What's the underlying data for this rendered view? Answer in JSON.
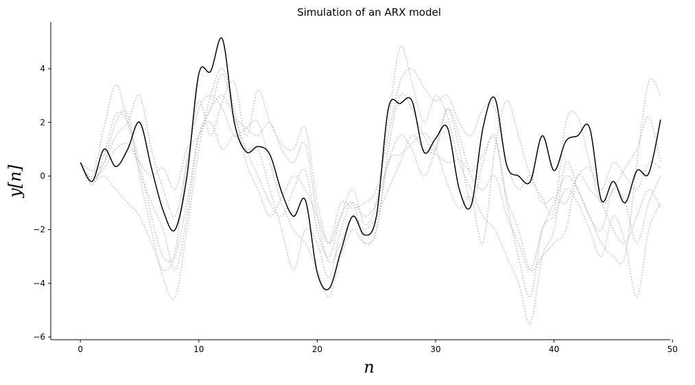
{
  "chart_data": {
    "type": "line",
    "title": "Simulation of an ARX model",
    "xlabel": "n",
    "ylabel": "y[n]",
    "x": [
      0,
      1,
      2,
      3,
      4,
      5,
      6,
      7,
      8,
      9,
      10,
      11,
      12,
      13,
      14,
      15,
      16,
      17,
      18,
      19,
      20,
      21,
      22,
      23,
      24,
      25,
      26,
      27,
      28,
      29,
      30,
      31,
      32,
      33,
      34,
      35,
      36,
      37,
      38,
      39,
      40,
      41,
      42,
      43,
      44,
      45,
      46,
      47,
      48,
      49
    ],
    "xlim": [
      -2.5,
      50.2
    ],
    "xticks": [
      0,
      10,
      20,
      30,
      40,
      50
    ],
    "ylim": [
      -6.1,
      5.74
    ],
    "yticks": [
      {
        "value": -6,
        "label": "−6"
      },
      {
        "value": -4,
        "label": "−4"
      },
      {
        "value": -2,
        "label": "−2"
      },
      0,
      2,
      4
    ],
    "grid": false,
    "series": [
      {
        "color": "#aaaaaa",
        "linestyle": "dotted",
        "values": [
          0.5,
          -0.3,
          0.8,
          2.3,
          2.0,
          0.5,
          -1.5,
          -3.0,
          -2.8,
          0.5,
          2.5,
          3.0,
          2.5,
          1.5,
          1.8,
          2.0,
          0.5,
          -1.0,
          -2.0,
          -2.5,
          -3.5,
          -4.5,
          -3.0,
          -2.0,
          -2.5,
          -2.0,
          1.0,
          3.0,
          2.5,
          1.5,
          1.0,
          2.5,
          1.0,
          -1.0,
          0.5,
          1.5,
          -1.0,
          -3.0,
          -4.5,
          -2.0,
          -1.5,
          -0.5,
          -1.0,
          -2.0,
          -3.0,
          -1.5,
          -2.5,
          -4.5,
          -2.0,
          -1.0
        ]
      },
      {
        "color": "#aaaaaa",
        "linestyle": "dotted",
        "values": [
          0.5,
          0.0,
          1.8,
          3.4,
          2.0,
          0.2,
          -1.0,
          -2.0,
          -3.5,
          -1.5,
          1.5,
          2.5,
          3.8,
          2.2,
          1.0,
          0.0,
          -1.0,
          -1.5,
          -0.5,
          0.2,
          -2.0,
          -3.0,
          -1.5,
          -0.5,
          -1.8,
          -1.0,
          2.0,
          4.8,
          3.5,
          2.0,
          3.0,
          2.2,
          0.5,
          -0.5,
          -1.5,
          -2.0,
          -3.0,
          -4.0,
          -5.5,
          -3.0,
          -2.0,
          0.5,
          -0.5,
          -1.5,
          -2.5,
          -3.0,
          -3.0,
          0.5,
          3.5,
          3.0
        ]
      },
      {
        "color": "#aaaaaa",
        "linestyle": "dotted",
        "values": [
          0.5,
          -0.2,
          0.0,
          -0.5,
          -1.0,
          -1.5,
          -2.5,
          -3.5,
          -3.0,
          -1.0,
          1.5,
          2.0,
          1.0,
          1.5,
          1.0,
          1.0,
          -0.5,
          -2.0,
          -3.5,
          -2.0,
          -2.5,
          -3.8,
          -2.0,
          -1.0,
          -1.5,
          -1.0,
          0.5,
          1.5,
          1.0,
          0.0,
          1.0,
          2.5,
          1.5,
          0.0,
          -0.5,
          0.0,
          -1.5,
          -2.5,
          -3.5,
          -2.0,
          -1.0,
          0.0,
          -0.5,
          -1.5,
          -2.0,
          -0.5,
          -1.0,
          -2.5,
          -1.0,
          0.0
        ]
      },
      {
        "color": "#aaaaaa",
        "linestyle": "dotted",
        "values": [
          0.5,
          0.2,
          0.5,
          1.5,
          2.0,
          3.0,
          1.0,
          -0.5,
          -1.5,
          0.5,
          2.8,
          1.5,
          2.8,
          3.5,
          1.5,
          3.2,
          2.0,
          1.2,
          1.0,
          1.8,
          -1.0,
          -2.5,
          -1.5,
          -1.0,
          -2.5,
          -2.0,
          0.5,
          0.8,
          1.2,
          1.6,
          1.0,
          -0.3,
          -1.2,
          -0.8,
          -2.5,
          1.0,
          2.8,
          1.5,
          0.0,
          -0.8,
          -1.3,
          2.0,
          2.2,
          0.5,
          -1.0,
          -0.5,
          0.3,
          1.0,
          2.2,
          0.5
        ]
      },
      {
        "color": "#aaaaaa",
        "linestyle": "dotted",
        "values": [
          0.5,
          -0.1,
          0.3,
          1.0,
          1.2,
          0.5,
          0.0,
          0.3,
          -0.5,
          1.0,
          1.5,
          2.5,
          3.0,
          2.2,
          1.8,
          1.5,
          2.0,
          1.0,
          0.5,
          1.2,
          -1.5,
          -3.2,
          -2.5,
          -1.5,
          -2.0,
          -1.5,
          -0.5,
          0.5,
          1.5,
          1.0,
          0.8,
          0.5,
          0.6,
          0.2,
          0.8,
          1.4,
          -0.8,
          -2.0,
          -3.5,
          -3.0,
          -2.5,
          -2.0,
          0.0,
          -0.5,
          -1.0,
          -2.0,
          -2.5,
          -1.5,
          -0.5,
          -1.2
        ]
      },
      {
        "color": "#aaaaaa",
        "linestyle": "dotted",
        "values": [
          0.5,
          -0.2,
          0.5,
          2.0,
          2.3,
          0.0,
          -2.0,
          -3.8,
          -4.5,
          -2.0,
          1.0,
          3.0,
          4.0,
          2.5,
          0.5,
          -0.5,
          -1.5,
          -0.8,
          0.0,
          -0.5,
          -1.5,
          -2.5,
          -1.0,
          -1.2,
          -1.0,
          -0.5,
          1.5,
          3.5,
          4.0,
          3.3,
          2.8,
          3.0,
          2.0,
          1.5,
          2.5,
          2.5,
          0.5,
          -0.5,
          0.0,
          -1.0,
          -0.8,
          -1.0,
          0.0,
          0.3,
          -0.5,
          0.5,
          0.0,
          -0.5,
          0.5,
          0.3
        ]
      },
      {
        "color": "#000000",
        "linestyle": "solid",
        "values": [
          0.5,
          -0.2,
          1.0,
          0.35,
          1.0,
          2.0,
          0.3,
          -1.3,
          -2.0,
          0.0,
          3.8,
          3.9,
          5.1,
          2.0,
          0.9,
          1.1,
          0.8,
          -0.6,
          -1.5,
          -0.9,
          -3.6,
          -4.2,
          -2.8,
          -1.5,
          -2.2,
          -1.5,
          2.5,
          2.7,
          2.8,
          0.9,
          1.4,
          1.8,
          -0.5,
          -1.1,
          1.8,
          2.9,
          0.4,
          0.0,
          -0.2,
          1.5,
          0.2,
          1.3,
          1.5,
          1.8,
          -0.9,
          -0.2,
          -1.0,
          0.2,
          0.1,
          2.1
        ]
      }
    ]
  }
}
